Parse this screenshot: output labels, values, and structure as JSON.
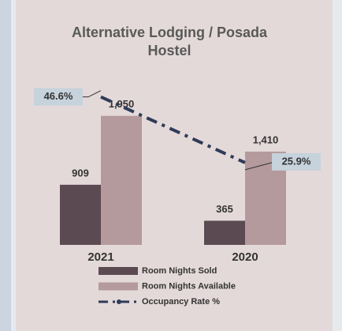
{
  "chart_data": {
    "type": "bar",
    "title": "Alternative Lodging / Posada Hostel",
    "categories": [
      "2021",
      "2020"
    ],
    "series": [
      {
        "name": "Room Nights Sold",
        "color": "#5b4a52",
        "values": [
          909,
          365
        ],
        "value_labels": [
          "909",
          "365"
        ]
      },
      {
        "name": "Room Nights Available",
        "color": "#b59a9d",
        "values": [
          1950,
          1410
        ],
        "value_labels": [
          "1,950",
          "1,410"
        ]
      },
      {
        "name": "Occupancy Rate %",
        "color": "#2f3b58",
        "type": "line",
        "axis": "y2",
        "values": [
          46.6,
          25.9
        ],
        "value_labels": [
          "46.6%",
          "25.9%"
        ]
      }
    ],
    "ylim": [
      0,
      2400
    ],
    "y2lim": [
      0,
      50
    ],
    "legend": "bottom"
  }
}
